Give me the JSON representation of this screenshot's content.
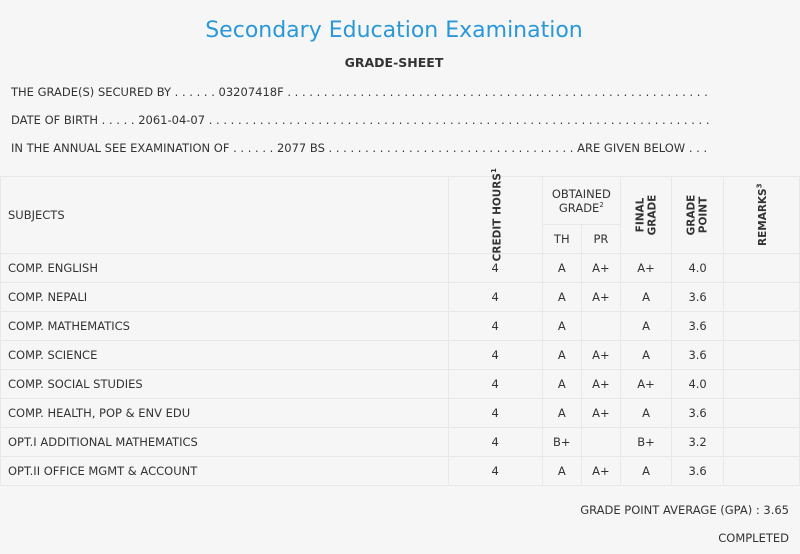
{
  "header": {
    "title": "Secondary Education Examination",
    "subtitle": "GRADE-SHEET"
  },
  "info": {
    "secured_by_prefix": "THE GRADE(S) SECURED BY . . . . . . ",
    "symbol_no": "03207418F",
    "secured_by_dots": " . . . . . . . . . . . . . . . . . . . . . . . . . . . . . . . . . . . . . . . . . . . . . . . . . . . . . . . . . .",
    "dob_prefix": "DATE OF BIRTH . . . . . ",
    "dob": "2061-04-07",
    "dob_dots": " . . . . . . . . . . . . . . . . . . . . . . . . . . . . . . . . . . . . . . . . . . . . . . . . . . . . . . . . . . . . . . . . . . . . .",
    "exam_prefix": "IN THE ANNUAL SEE EXAMINATION OF . . . . . . ",
    "exam_year": "2077 BS",
    "exam_dots": " . . . . . . . . . . . . . . . . . . . . . . . . . . . . . . . . . . ",
    "exam_suffix": "ARE GIVEN BELOW . . ."
  },
  "table": {
    "headers": {
      "subjects": "SUBJECTS",
      "credit_hours": "CREDIT HOURS",
      "credit_sup": "1",
      "obtained_grade": "OBTAINED GRADE",
      "obtained_sup": "2",
      "th": "TH",
      "pr": "PR",
      "final_grade_1": "FINAL",
      "final_grade_2": "GRADE",
      "grade_point_1": "GRADE",
      "grade_point_2": "POINT",
      "remarks": "REMARKS",
      "remarks_sup": "3"
    },
    "rows": [
      {
        "subject": "COMP. ENGLISH",
        "credit": "4",
        "th": "A",
        "pr": "A+",
        "final": "A+",
        "gp": "4.0",
        "remarks": ""
      },
      {
        "subject": "COMP. NEPALI",
        "credit": "4",
        "th": "A",
        "pr": "A+",
        "final": "A",
        "gp": "3.6",
        "remarks": ""
      },
      {
        "subject": "COMP. MATHEMATICS",
        "credit": "4",
        "th": "A",
        "pr": "",
        "final": "A",
        "gp": "3.6",
        "remarks": ""
      },
      {
        "subject": "COMP. SCIENCE",
        "credit": "4",
        "th": "A",
        "pr": "A+",
        "final": "A",
        "gp": "3.6",
        "remarks": ""
      },
      {
        "subject": "COMP. SOCIAL STUDIES",
        "credit": "4",
        "th": "A",
        "pr": "A+",
        "final": "A+",
        "gp": "4.0",
        "remarks": ""
      },
      {
        "subject": "COMP. HEALTH, POP & ENV EDU",
        "credit": "4",
        "th": "A",
        "pr": "A+",
        "final": "A",
        "gp": "3.6",
        "remarks": ""
      },
      {
        "subject": "OPT.I ADDITIONAL MATHEMATICS",
        "credit": "4",
        "th": "B+",
        "pr": "",
        "final": "B+",
        "gp": "3.2",
        "remarks": ""
      },
      {
        "subject": "OPT.II OFFICE MGMT & ACCOUNT",
        "credit": "4",
        "th": "A",
        "pr": "A+",
        "final": "A",
        "gp": "3.6",
        "remarks": ""
      }
    ]
  },
  "summary": {
    "gpa_label": "GRADE POINT AVERAGE (GPA) : ",
    "gpa_value": "3.65",
    "status": "COMPLETED"
  }
}
